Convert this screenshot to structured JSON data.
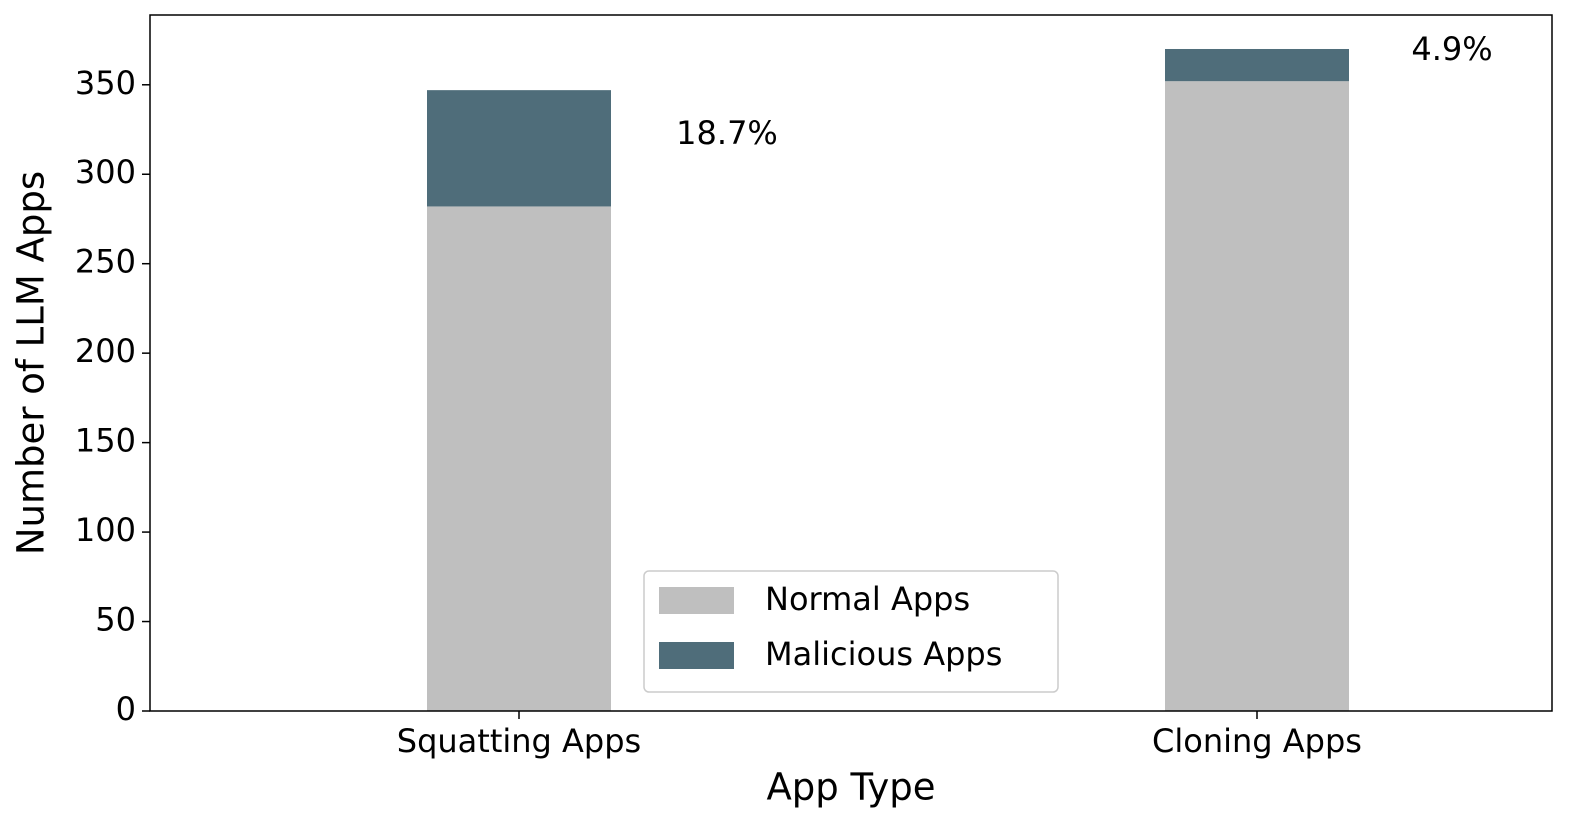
{
  "chart_data": {
    "type": "stacked_bar",
    "xlabel": "App Type",
    "ylabel": "Number of LLM Apps",
    "categories": [
      "Squatting Apps",
      "Cloning Apps"
    ],
    "series": [
      {
        "name": "Normal Apps",
        "color": "#bfbfbf",
        "values": [
          282,
          352
        ]
      },
      {
        "name": "Malicious Apps",
        "color": "#4f6d7a",
        "values": [
          65,
          18
        ]
      }
    ],
    "annotations": [
      "18.7%",
      "4.9%"
    ],
    "ylim": [
      0,
      389
    ],
    "yticks": [
      0,
      50,
      100,
      150,
      200,
      250,
      300,
      350
    ],
    "legend": "lower center"
  }
}
